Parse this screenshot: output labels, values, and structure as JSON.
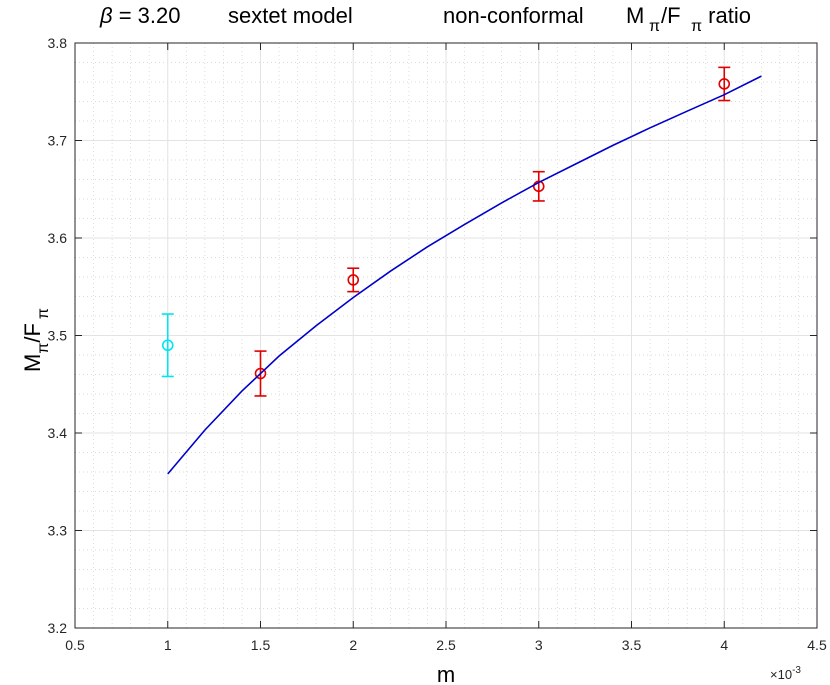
{
  "chart_data": {
    "type": "scatter",
    "title": {
      "beta_symbol": "β",
      "beta_value": " = 3.20",
      "model": "sextet model",
      "variant": "non-conformal",
      "quantity_main1": "M",
      "quantity_sub1": "π",
      "quantity_slash": "/F",
      "quantity_sub2": "π",
      "quantity_suffix": " ratio"
    },
    "xlabel": "m",
    "x_exponent": {
      "base": "×10",
      "power": "-3"
    },
    "ylabel": {
      "main1": "M",
      "sub1": "π",
      "slash": "/F",
      "sub2": "π"
    },
    "xlim": [
      0.5,
      4.5
    ],
    "ylim": [
      3.2,
      3.8
    ],
    "x_ticks": [
      0.5,
      1,
      1.5,
      2,
      2.5,
      3,
      3.5,
      4,
      4.5
    ],
    "x_tick_labels": [
      "0.5",
      "1",
      "1.5",
      "2",
      "2.5",
      "3",
      "3.5",
      "4",
      "4.5"
    ],
    "y_ticks": [
      3.2,
      3.3,
      3.4,
      3.5,
      3.6,
      3.7,
      3.8
    ],
    "y_tick_labels": [
      "3.2",
      "3.3",
      "3.4",
      "3.5",
      "3.6",
      "3.7",
      "3.8"
    ],
    "grid": true,
    "minor_grid": true,
    "series": [
      {
        "kind": "errorbar",
        "color": "#00e5ee",
        "points": [
          {
            "x": 1.0,
            "y": 3.49,
            "err": 0.032
          }
        ]
      },
      {
        "kind": "errorbar",
        "color": "#e00000",
        "points": [
          {
            "x": 1.5,
            "y": 3.461,
            "err": 0.023
          },
          {
            "x": 2.0,
            "y": 3.557,
            "err": 0.012
          },
          {
            "x": 3.0,
            "y": 3.653,
            "err": 0.015
          },
          {
            "x": 4.0,
            "y": 3.758,
            "err": 0.017
          }
        ]
      },
      {
        "kind": "line",
        "color": "#0000cc",
        "x": [
          1.0,
          1.2,
          1.4,
          1.6,
          1.8,
          2.0,
          2.2,
          2.4,
          2.6,
          2.8,
          3.0,
          3.2,
          3.4,
          3.6,
          3.8,
          4.0,
          4.2
        ],
        "y": [
          3.358,
          3.403,
          3.443,
          3.479,
          3.51,
          3.539,
          3.566,
          3.591,
          3.614,
          3.636,
          3.657,
          3.676,
          3.695,
          3.713,
          3.73,
          3.747,
          3.766
        ]
      }
    ]
  }
}
